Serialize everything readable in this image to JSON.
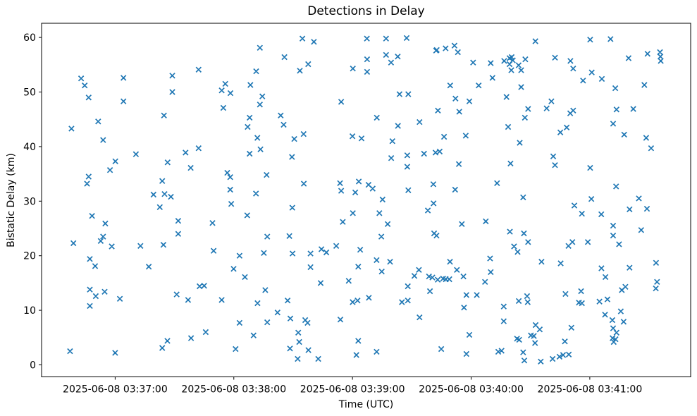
{
  "figure": {
    "background": "#ffffff"
  },
  "chart_data": {
    "type": "scatter",
    "title": "Detections in Delay",
    "xlabel": "Time (UTC)",
    "ylabel": "Bistatic Delay (km)",
    "marker": "x",
    "marker_color": "#1f77b4",
    "axis_color": "#000000",
    "grid": false,
    "x_unit_note": "x values in points[] are seconds after 2025-06-08 03:36:00 UTC, read from the time axis",
    "xlim": [
      22.8,
      351.0
    ],
    "ylim": [
      -2.2,
      62.6
    ],
    "x_ticks": [
      {
        "value": 60,
        "label": "2025-06-08 03:37:00"
      },
      {
        "value": 120,
        "label": "2025-06-08 03:38:00"
      },
      {
        "value": 180,
        "label": "2025-06-08 03:39:00"
      },
      {
        "value": 240,
        "label": "2025-06-08 03:40:00"
      },
      {
        "value": 300,
        "label": "2025-06-08 03:41:00"
      }
    ],
    "y_ticks": [
      0,
      10,
      20,
      30,
      40,
      50,
      60
    ],
    "points": [
      [
        42.8,
        52.5
      ],
      [
        44.6,
        51.2
      ],
      [
        46.6,
        49.0
      ],
      [
        64.2,
        52.6
      ],
      [
        64.2,
        48.3
      ],
      [
        88.9,
        53.0
      ],
      [
        102.2,
        54.1
      ],
      [
        88.9,
        50.0
      ],
      [
        84.7,
        45.7
      ],
      [
        51.4,
        44.6
      ],
      [
        37.9,
        43.3
      ],
      [
        53.9,
        41.2
      ],
      [
        70.5,
        38.6
      ],
      [
        95.6,
        38.9
      ],
      [
        102.2,
        39.7
      ],
      [
        60.1,
        37.3
      ],
      [
        57.4,
        35.7
      ],
      [
        86.5,
        37.1
      ],
      [
        98.2,
        36.1
      ],
      [
        46.6,
        34.5
      ],
      [
        45.8,
        33.2
      ],
      [
        83.8,
        33.7
      ],
      [
        79.4,
        31.2
      ],
      [
        85.0,
        31.3
      ],
      [
        88.2,
        30.8
      ],
      [
        154.7,
        59.8
      ],
      [
        160.5,
        59.2
      ],
      [
        133.2,
        58.1
      ],
      [
        145.6,
        56.4
      ],
      [
        157.6,
        55.1
      ],
      [
        153.4,
        53.9
      ],
      [
        131.3,
        53.8
      ],
      [
        180.2,
        54.3
      ],
      [
        115.7,
        51.5
      ],
      [
        113.9,
        50.3
      ],
      [
        118.3,
        49.8
      ],
      [
        128.4,
        51.3
      ],
      [
        134.4,
        49.2
      ],
      [
        133.2,
        47.7
      ],
      [
        114.7,
        47.1
      ],
      [
        174.3,
        48.2
      ],
      [
        128.0,
        45.3
      ],
      [
        127.0,
        43.6
      ],
      [
        143.7,
        45.7
      ],
      [
        145.2,
        44.0
      ],
      [
        131.9,
        41.6
      ],
      [
        133.5,
        39.5
      ],
      [
        128.0,
        38.7
      ],
      [
        150.6,
        41.4
      ],
      [
        155.3,
        42.3
      ],
      [
        149.4,
        38.1
      ],
      [
        180.0,
        41.9
      ],
      [
        184.6,
        41.5
      ],
      [
        116.7,
        35.2
      ],
      [
        118.2,
        34.4
      ],
      [
        136.6,
        34.8
      ],
      [
        118.2,
        32.1
      ],
      [
        131.2,
        31.4
      ],
      [
        155.4,
        33.2
      ],
      [
        173.7,
        33.3
      ],
      [
        183.2,
        33.6
      ],
      [
        174.3,
        31.9
      ],
      [
        181.4,
        31.6
      ],
      [
        187.3,
        59.8
      ],
      [
        197.0,
        59.8
      ],
      [
        207.4,
        59.9
      ],
      [
        187.4,
        56.0
      ],
      [
        197.0,
        56.8
      ],
      [
        202.9,
        56.5
      ],
      [
        199.5,
        55.4
      ],
      [
        187.4,
        53.7
      ],
      [
        222.3,
        57.6
      ],
      [
        222.6,
        57.7
      ],
      [
        227.1,
        58.0
      ],
      [
        231.6,
        58.5
      ],
      [
        233.3,
        57.3
      ],
      [
        241.0,
        55.4
      ],
      [
        249.9,
        55.3
      ],
      [
        256.7,
        55.7
      ],
      [
        259.4,
        56.2
      ],
      [
        260.5,
        56.4
      ],
      [
        261.1,
        55.8
      ],
      [
        259.4,
        55.1
      ],
      [
        264.0,
        54.9
      ],
      [
        265.3,
        54.0
      ],
      [
        260.3,
        54.0
      ],
      [
        267.4,
        56.0
      ],
      [
        250.8,
        52.6
      ],
      [
        243.8,
        51.2
      ],
      [
        265.3,
        50.9
      ],
      [
        229.4,
        51.2
      ],
      [
        203.8,
        49.6
      ],
      [
        208.2,
        49.6
      ],
      [
        232.1,
        48.8
      ],
      [
        239.1,
        48.3
      ],
      [
        257.9,
        49.1
      ],
      [
        223.2,
        46.6
      ],
      [
        234.0,
        46.4
      ],
      [
        268.8,
        46.9
      ],
      [
        192.3,
        45.3
      ],
      [
        267.2,
        45.3
      ],
      [
        203.0,
        43.8
      ],
      [
        213.9,
        44.5
      ],
      [
        258.7,
        43.6
      ],
      [
        226.3,
        41.8
      ],
      [
        237.3,
        42.0
      ],
      [
        200.2,
        41.0
      ],
      [
        264.6,
        40.7
      ],
      [
        216.2,
        38.7
      ],
      [
        222.0,
        38.9
      ],
      [
        224.1,
        39.1
      ],
      [
        207.7,
        38.4
      ],
      [
        199.6,
        37.9
      ],
      [
        207.7,
        36.3
      ],
      [
        233.8,
        36.8
      ],
      [
        259.9,
        36.9
      ],
      [
        253.1,
        33.3
      ],
      [
        220.9,
        33.1
      ],
      [
        208.2,
        32.0
      ],
      [
        231.9,
        32.1
      ],
      [
        188.1,
        33.0
      ],
      [
        190.2,
        32.3
      ],
      [
        266.3,
        30.7
      ],
      [
        272.5,
        59.3
      ],
      [
        300.2,
        59.6
      ],
      [
        310.5,
        59.7
      ],
      [
        282.4,
        56.3
      ],
      [
        290.2,
        55.7
      ],
      [
        291.6,
        54.3
      ],
      [
        301.0,
        53.6
      ],
      [
        296.6,
        52.1
      ],
      [
        306.1,
        52.4
      ],
      [
        319.6,
        56.2
      ],
      [
        329.2,
        57.0
      ],
      [
        335.5,
        57.3
      ],
      [
        335.7,
        56.5
      ],
      [
        335.9,
        55.7
      ],
      [
        312.9,
        50.7
      ],
      [
        327.6,
        51.3
      ],
      [
        280.6,
        48.3
      ],
      [
        278.2,
        47.0
      ],
      [
        290.1,
        46.1
      ],
      [
        291.6,
        46.6
      ],
      [
        313.5,
        46.8
      ],
      [
        322.0,
        46.9
      ],
      [
        311.8,
        44.2
      ],
      [
        285.1,
        42.6
      ],
      [
        288.3,
        43.5
      ],
      [
        317.4,
        42.2
      ],
      [
        328.5,
        41.6
      ],
      [
        331.0,
        39.7
      ],
      [
        281.5,
        38.2
      ],
      [
        282.4,
        36.6
      ],
      [
        300.2,
        36.1
      ],
      [
        313.3,
        32.7
      ],
      [
        82.6,
        28.9
      ],
      [
        48.3,
        27.3
      ],
      [
        55.0,
        25.9
      ],
      [
        91.9,
        26.4
      ],
      [
        91.9,
        24.0
      ],
      [
        38.9,
        22.3
      ],
      [
        52.7,
        22.7
      ],
      [
        53.9,
        23.5
      ],
      [
        58.3,
        21.7
      ],
      [
        72.8,
        21.8
      ],
      [
        84.4,
        22.0
      ],
      [
        47.2,
        19.4
      ],
      [
        49.9,
        18.1
      ],
      [
        77.0,
        18.0
      ],
      [
        47.2,
        13.8
      ],
      [
        50.2,
        12.6
      ],
      [
        54.7,
        13.4
      ],
      [
        62.4,
        12.1
      ],
      [
        47.2,
        10.8
      ],
      [
        91.1,
        12.9
      ],
      [
        96.9,
        11.9
      ],
      [
        102.7,
        14.4
      ],
      [
        105.0,
        14.5
      ],
      [
        98.4,
        4.9
      ],
      [
        86.4,
        4.4
      ],
      [
        83.8,
        3.1
      ],
      [
        37.2,
        2.5
      ],
      [
        60.0,
        2.2
      ],
      [
        118.7,
        29.5
      ],
      [
        126.8,
        27.4
      ],
      [
        149.6,
        28.8
      ],
      [
        109.2,
        26.0
      ],
      [
        175.1,
        26.2
      ],
      [
        180.2,
        27.8
      ],
      [
        136.9,
        23.5
      ],
      [
        148.1,
        23.6
      ],
      [
        109.8,
        20.9
      ],
      [
        122.9,
        20.0
      ],
      [
        135.2,
        20.5
      ],
      [
        149.7,
        20.4
      ],
      [
        158.8,
        20.4
      ],
      [
        164.3,
        21.2
      ],
      [
        166.8,
        20.6
      ],
      [
        171.8,
        21.8
      ],
      [
        183.9,
        21.1
      ],
      [
        158.8,
        17.9
      ],
      [
        182.9,
        18.0
      ],
      [
        119.9,
        17.6
      ],
      [
        125.6,
        16.1
      ],
      [
        163.9,
        15.0
      ],
      [
        178.1,
        15.4
      ],
      [
        135.9,
        13.7
      ],
      [
        113.9,
        11.9
      ],
      [
        132.0,
        11.3
      ],
      [
        147.2,
        11.8
      ],
      [
        180.1,
        11.5
      ],
      [
        182.6,
        11.8
      ],
      [
        142.1,
        9.6
      ],
      [
        148.6,
        8.5
      ],
      [
        156.1,
        8.2
      ],
      [
        157.3,
        7.7
      ],
      [
        122.9,
        7.7
      ],
      [
        136.9,
        7.8
      ],
      [
        173.9,
        8.3
      ],
      [
        105.8,
        6.0
      ],
      [
        130.0,
        5.4
      ],
      [
        152.6,
        5.9
      ],
      [
        120.9,
        2.9
      ],
      [
        148.4,
        3.0
      ],
      [
        153.1,
        4.2
      ],
      [
        157.7,
        2.7
      ],
      [
        152.3,
        1.1
      ],
      [
        162.7,
        1.1
      ],
      [
        182.9,
        4.4
      ],
      [
        182.0,
        1.8
      ],
      [
        195.2,
        30.3
      ],
      [
        221.0,
        29.6
      ],
      [
        218.1,
        28.3
      ],
      [
        193.6,
        27.8
      ],
      [
        197.8,
        25.8
      ],
      [
        235.3,
        25.8
      ],
      [
        247.4,
        26.3
      ],
      [
        194.6,
        23.5
      ],
      [
        221.3,
        24.1
      ],
      [
        222.5,
        23.7
      ],
      [
        259.6,
        24.4
      ],
      [
        266.7,
        24.1
      ],
      [
        261.7,
        21.7
      ],
      [
        263.5,
        20.7
      ],
      [
        192.2,
        19.2
      ],
      [
        199.0,
        18.9
      ],
      [
        194.8,
        17.1
      ],
      [
        229.3,
        18.9
      ],
      [
        249.6,
        19.5
      ],
      [
        249.9,
        17.0
      ],
      [
        213.6,
        17.4
      ],
      [
        211.3,
        16.3
      ],
      [
        232.8,
        17.4
      ],
      [
        236.1,
        16.2
      ],
      [
        218.7,
        16.2
      ],
      [
        220.4,
        16.0
      ],
      [
        223.1,
        15.6
      ],
      [
        225.8,
        15.8
      ],
      [
        227.2,
        15.7
      ],
      [
        229.0,
        15.7
      ],
      [
        208.0,
        14.4
      ],
      [
        219.2,
        13.5
      ],
      [
        247.0,
        15.2
      ],
      [
        237.6,
        12.8
      ],
      [
        242.9,
        12.8
      ],
      [
        188.3,
        12.3
      ],
      [
        205.0,
        11.5
      ],
      [
        208.0,
        11.8
      ],
      [
        264.1,
        11.7
      ],
      [
        236.4,
        10.5
      ],
      [
        256.5,
        10.7
      ],
      [
        213.9,
        8.7
      ],
      [
        256.5,
        8.0
      ],
      [
        239.1,
        5.5
      ],
      [
        263.2,
        4.8
      ],
      [
        264.3,
        4.6
      ],
      [
        224.9,
        2.9
      ],
      [
        192.2,
        2.4
      ],
      [
        237.6,
        2.0
      ],
      [
        253.7,
        2.4
      ],
      [
        255.4,
        2.6
      ],
      [
        266.3,
        2.3
      ],
      [
        266.9,
        0.8
      ],
      [
        292.2,
        29.2
      ],
      [
        296.0,
        27.7
      ],
      [
        300.8,
        30.4
      ],
      [
        305.8,
        27.6
      ],
      [
        320.1,
        28.5
      ],
      [
        324.8,
        30.5
      ],
      [
        328.9,
        28.6
      ],
      [
        311.8,
        25.5
      ],
      [
        311.8,
        23.7
      ],
      [
        326.0,
        24.7
      ],
      [
        314.8,
        22.1
      ],
      [
        268.8,
        22.5
      ],
      [
        289.2,
        21.8
      ],
      [
        291.2,
        22.5
      ],
      [
        299.0,
        22.5
      ],
      [
        275.6,
        18.9
      ],
      [
        285.3,
        18.6
      ],
      [
        305.9,
        17.7
      ],
      [
        307.9,
        16.1
      ],
      [
        320.1,
        17.8
      ],
      [
        333.5,
        18.7
      ],
      [
        334.0,
        15.2
      ],
      [
        333.4,
        14.0
      ],
      [
        287.7,
        13.0
      ],
      [
        295.6,
        13.5
      ],
      [
        268.3,
        12.6
      ],
      [
        268.6,
        11.5
      ],
      [
        294.5,
        11.4
      ],
      [
        296.0,
        11.3
      ],
      [
        304.9,
        11.6
      ],
      [
        308.9,
        12.0
      ],
      [
        316.2,
        13.7
      ],
      [
        318.0,
        14.3
      ],
      [
        315.7,
        9.8
      ],
      [
        307.7,
        9.2
      ],
      [
        311.4,
        8.2
      ],
      [
        317.1,
        7.9
      ],
      [
        272.6,
        7.3
      ],
      [
        274.7,
        6.5
      ],
      [
        290.7,
        6.8
      ],
      [
        311.8,
        6.7
      ],
      [
        313.5,
        5.9
      ],
      [
        311.5,
        4.9
      ],
      [
        313.0,
        4.7
      ],
      [
        312.1,
        4.2
      ],
      [
        270.2,
        5.4
      ],
      [
        271.7,
        5.3
      ],
      [
        272.3,
        4.0
      ],
      [
        287.4,
        4.3
      ],
      [
        275.2,
        0.6
      ],
      [
        281.2,
        1.1
      ],
      [
        284.7,
        1.5
      ],
      [
        286.5,
        1.8
      ],
      [
        289.4,
        1.9
      ]
    ]
  }
}
